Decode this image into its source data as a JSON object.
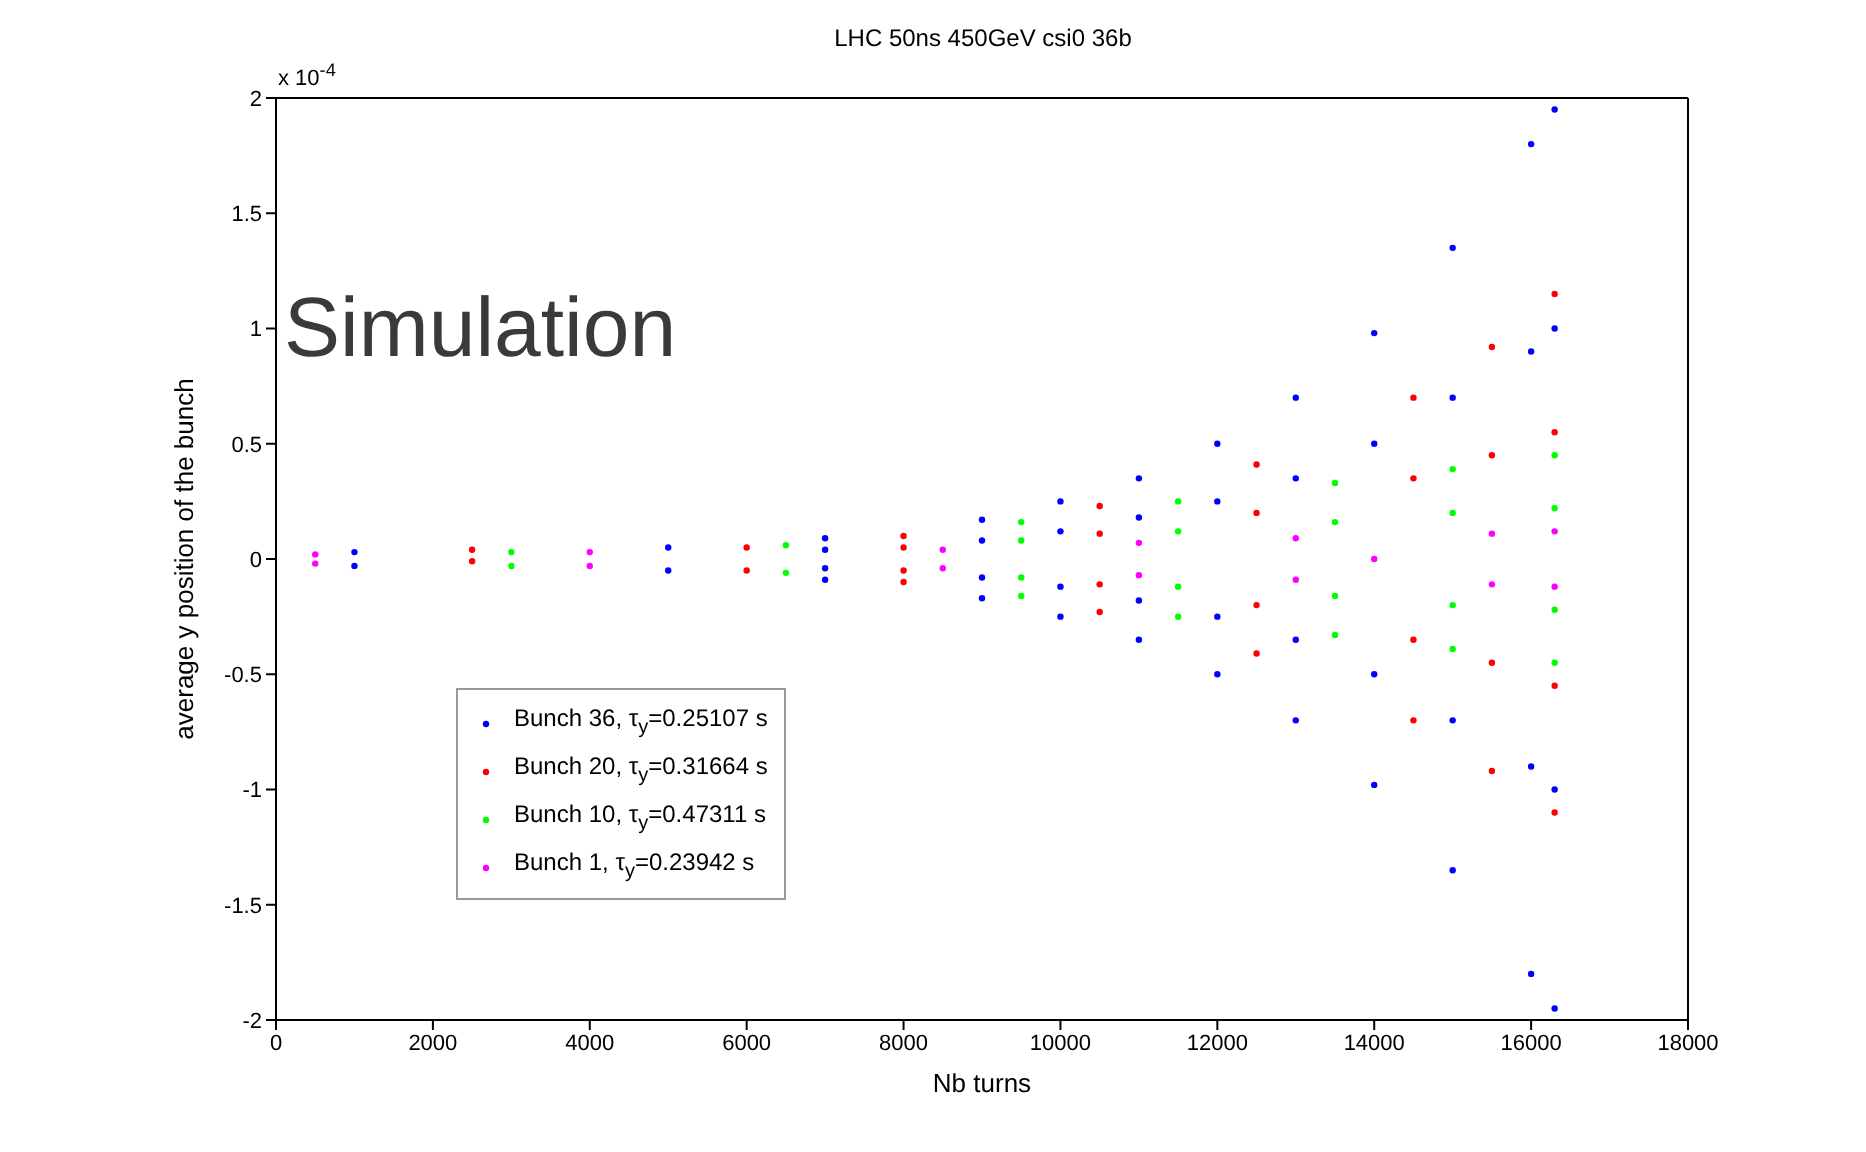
{
  "chart_data": {
    "type": "scatter",
    "title": "LHC 50ns 450GeV csi0 36b",
    "xlabel": "Nb turns",
    "ylabel": "average y position of the bunch",
    "annotations": [
      "x 10$^{-4}$",
      "Simulation"
    ],
    "xlim": [
      0,
      18000
    ],
    "xticks": [
      0,
      2000,
      4000,
      6000,
      8000,
      10000,
      12000,
      14000,
      16000,
      18000
    ],
    "ylim": [
      -2,
      2
    ],
    "yticks": [
      -2,
      -1.5,
      -1,
      -0.5,
      0,
      0.5,
      1,
      1.5,
      2
    ],
    "grid": false,
    "legend": "bottom left",
    "marker": "circle",
    "series": [
      {
        "name": "Bunch 36, τ$_{y}$=0.25107 s",
        "color": "#0000ff",
        "x": [
          1000,
          1000,
          5000,
          5000,
          7000,
          7000,
          7000,
          7000,
          9000,
          9000,
          9000,
          9000,
          10000,
          10000,
          10000,
          10000,
          11000,
          11000,
          11000,
          11000,
          12000,
          12000,
          12000,
          12000,
          13000,
          13000,
          13000,
          13000,
          14000,
          14000,
          14000,
          14000,
          15000,
          15000,
          15000,
          15000,
          16000,
          16000,
          16000,
          16000,
          16300,
          16300,
          16300,
          16300
        ],
        "values": [
          0.03,
          -0.03,
          0.05,
          -0.05,
          0.09,
          -0.09,
          0.04,
          -0.04,
          0.17,
          -0.17,
          0.08,
          -0.08,
          0.25,
          -0.25,
          0.12,
          -0.12,
          0.35,
          -0.35,
          0.18,
          -0.18,
          0.5,
          -0.5,
          0.25,
          -0.25,
          0.7,
          -0.7,
          0.35,
          -0.35,
          0.98,
          -0.98,
          0.5,
          -0.5,
          1.35,
          -1.35,
          0.7,
          -0.7,
          1.8,
          -1.8,
          0.9,
          -0.9,
          1.95,
          -1.95,
          1,
          -1
        ]
      },
      {
        "name": "Bunch 20, τ$_{y}$=0.31664 s",
        "color": "#ff0000",
        "x": [
          2500,
          2500,
          6000,
          6000,
          8000,
          8000,
          8000,
          8000,
          10500,
          10500,
          10500,
          10500,
          12500,
          12500,
          12500,
          12500,
          14500,
          14500,
          14500,
          14500,
          15500,
          15500,
          15500,
          15500,
          16300,
          16300,
          16300,
          16300
        ],
        "values": [
          0.04,
          -0.01,
          0.05,
          -0.05,
          0.1,
          -0.1,
          0.05,
          -0.05,
          0.23,
          -0.23,
          0.11,
          -0.11,
          0.41,
          -0.41,
          0.2,
          -0.2,
          0.7,
          -0.7,
          0.35,
          -0.35,
          0.92,
          -0.92,
          0.45,
          -0.45,
          1.15,
          -1.1,
          0.55,
          -0.55
        ]
      },
      {
        "name": "Bunch 10, τ$_{y}$=0.47311 s",
        "color": "#00ff00",
        "x": [
          3000,
          3000,
          6500,
          6500,
          9500,
          9500,
          9500,
          9500,
          11500,
          11500,
          11500,
          11500,
          13500,
          13500,
          13500,
          13500,
          15000,
          15000,
          15000,
          15000,
          16300,
          16300,
          16300,
          16300
        ],
        "values": [
          0.03,
          -0.03,
          0.06,
          -0.06,
          0.16,
          -0.16,
          0.08,
          -0.08,
          0.25,
          -0.25,
          0.12,
          -0.12,
          0.33,
          -0.33,
          0.16,
          -0.16,
          0.39,
          -0.39,
          0.2,
          -0.2,
          0.45,
          -0.45,
          0.22,
          -0.22
        ]
      },
      {
        "name": "Bunch 1, τ$_{y}$=0.23942 s",
        "color": "#ff00ff",
        "x": [
          500,
          500,
          4000,
          4000,
          8500,
          8500,
          11000,
          11000,
          13000,
          13000,
          14000,
          15500,
          15500,
          16300,
          16300
        ],
        "values": [
          0.02,
          -0.02,
          0.03,
          -0.03,
          0.04,
          -0.04,
          0.07,
          -0.07,
          0.09,
          -0.09,
          0,
          0.11,
          -0.11,
          0.12,
          -0.12
        ]
      }
    ]
  }
}
